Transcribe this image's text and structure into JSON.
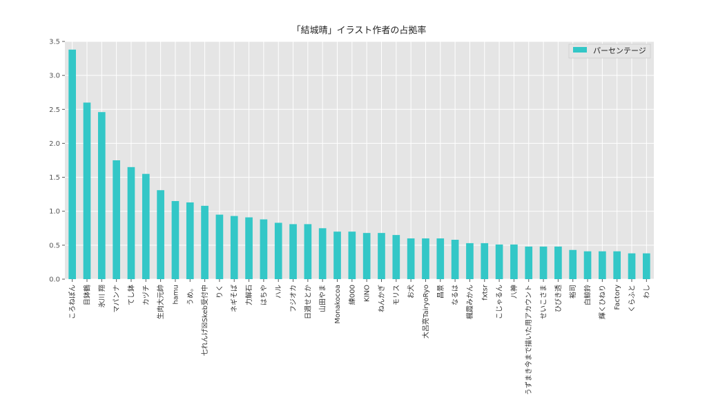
{
  "chart_data": {
    "type": "bar",
    "title": "「結城晴」イラスト作者の占拠率",
    "xlabel": "",
    "ylabel": "",
    "ylim": [
      0,
      3.5
    ],
    "yticks": [
      "0.0",
      "0.5",
      "1.0",
      "1.5",
      "2.0",
      "2.5",
      "3.0",
      "3.5"
    ],
    "grid": true,
    "legend_position": "top-right",
    "categories": [
      "ころねぽん",
      "目鉢鶴",
      "氷川 翔",
      "マパンナ",
      "てし鉢",
      "カヅチ",
      "生肉大元帥",
      "hamu",
      "うめ。",
      "七れんげ☒Skeb受付中",
      "りく",
      "ネギそば",
      "力解石",
      "はちや",
      "ハル",
      "フジオカ",
      "日週せとか",
      "山田やま",
      "Monakocoa",
      "練000",
      "KINO",
      "ねんかぎ",
      "モリス",
      "お犬",
      "大呂亮TairyoRyo",
      "昌景",
      "なるは",
      "楓霞みかん",
      "fxtsr",
      "こじゃるん",
      "八神",
      "うずまき今まで描いた用アカウント",
      "せいこさま",
      "ひびき透",
      "裕司",
      "白鯨鈴",
      "輝くひねり",
      "Factory",
      "くらふと",
      "わし"
    ],
    "series": [
      {
        "name": "パーセンテージ",
        "color": "#33c7c7",
        "values": [
          3.38,
          2.6,
          2.46,
          1.75,
          1.65,
          1.55,
          1.31,
          1.15,
          1.13,
          1.08,
          0.95,
          0.93,
          0.91,
          0.88,
          0.83,
          0.81,
          0.81,
          0.75,
          0.7,
          0.7,
          0.68,
          0.68,
          0.65,
          0.6,
          0.6,
          0.6,
          0.58,
          0.53,
          0.53,
          0.51,
          0.51,
          0.48,
          0.48,
          0.48,
          0.43,
          0.41,
          0.41,
          0.41,
          0.38,
          0.38
        ]
      }
    ]
  }
}
